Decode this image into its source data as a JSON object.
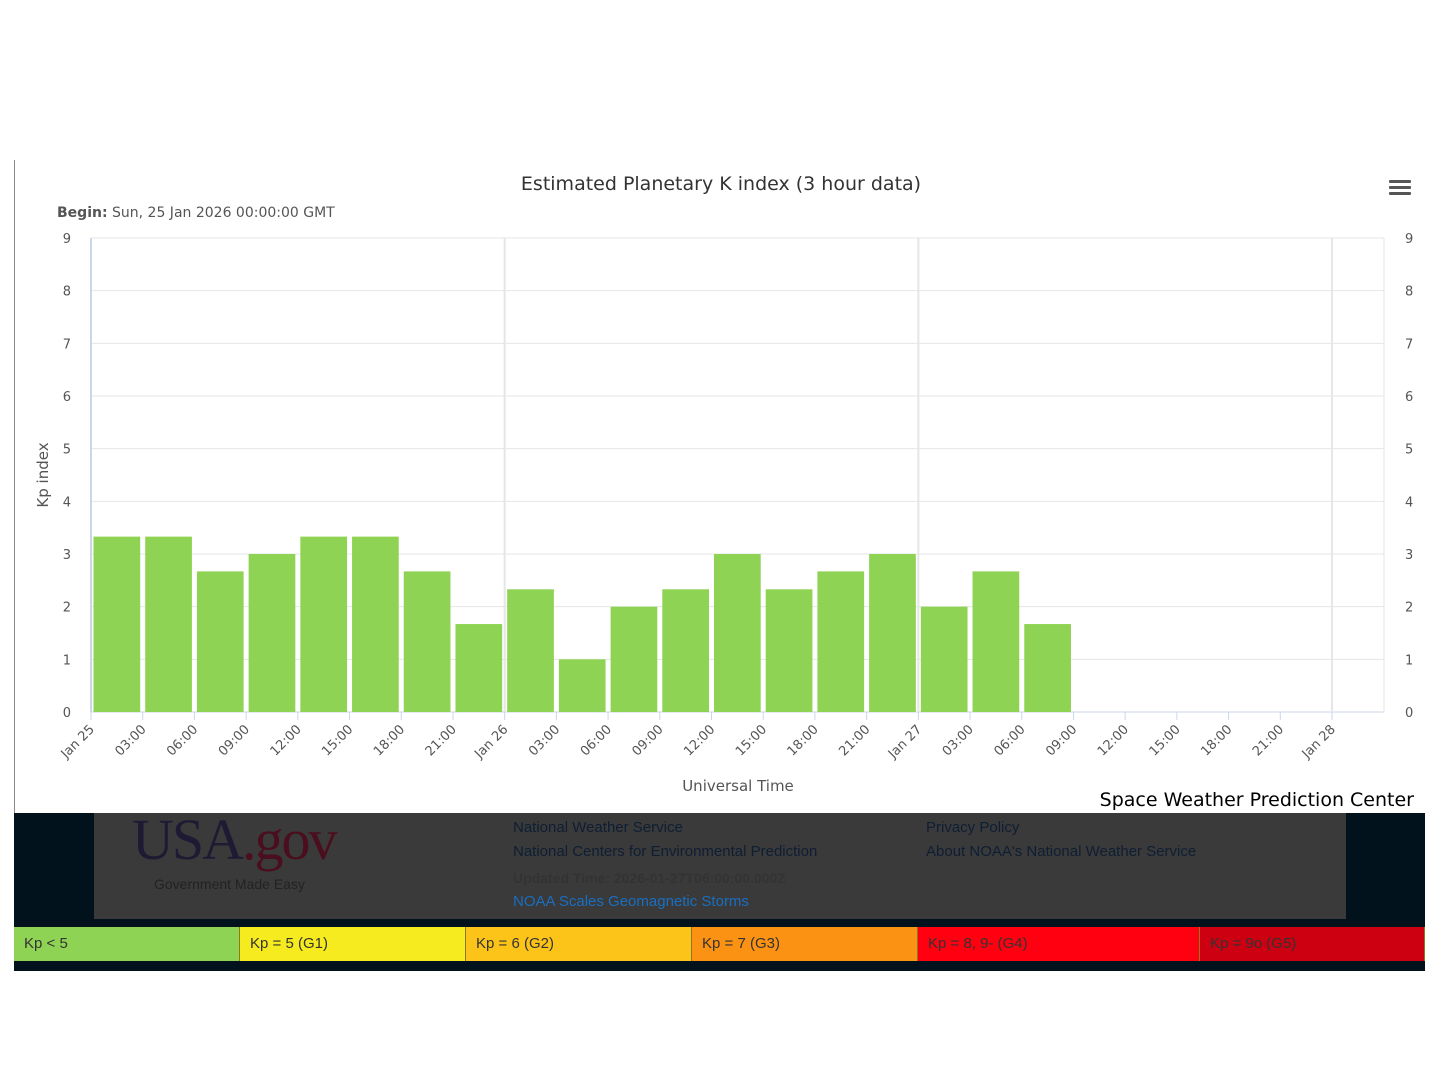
{
  "chart_data": {
    "type": "bar",
    "title": "Estimated Planetary K index (3 hour data)",
    "subtitle_label": "Begin:",
    "subtitle_value": " Sun, 25 Jan 2026 00:00:00 GMT",
    "xlabel": "Universal Time",
    "ylabel": "Kp index",
    "ylim": [
      0,
      9
    ],
    "yticks": [
      "0",
      "1",
      "2",
      "3",
      "4",
      "5",
      "6",
      "7",
      "8",
      "9"
    ],
    "xticks": [
      "Jan 25",
      "03:00",
      "06:00",
      "09:00",
      "12:00",
      "15:00",
      "18:00",
      "21:00",
      "Jan 26",
      "03:00",
      "06:00",
      "09:00",
      "12:00",
      "15:00",
      "18:00",
      "21:00",
      "Jan 27",
      "03:00",
      "06:00",
      "09:00",
      "12:00",
      "15:00",
      "18:00",
      "21:00",
      "Jan 28"
    ],
    "x_interval_hours": 3,
    "values": [
      3.33,
      3.33,
      2.67,
      3,
      3.33,
      3.33,
      2.67,
      1.67,
      2.33,
      1,
      2,
      2.33,
      3,
      2.33,
      2.67,
      3,
      2,
      2.67,
      1.67
    ],
    "bar_color": "#8fd354",
    "grid": true
  },
  "credit": "Space Weather Prediction Center",
  "footer": {
    "usa_logo": "USA.gov",
    "usa_tagline": "Government Made Easy",
    "links": [
      "National Weather Service",
      "National Centers for Environmental Prediction",
      "Privacy Policy",
      "About NOAA's National Weather Service"
    ],
    "updated": "Updated Time: 2026-01-27T06:00:00.000Z",
    "scales_link": "NOAA Scales Geomagnetic Storms"
  },
  "legend": [
    {
      "label": "Kp < 5",
      "color": "#8fd354"
    },
    {
      "label": "Kp = 5 (G1)",
      "color": "#f6eb1f"
    },
    {
      "label": "Kp = 6 (G2)",
      "color": "#fcc419"
    },
    {
      "label": "Kp = 7 (G3)",
      "color": "#fc9214"
    },
    {
      "label": "Kp = 8, 9- (G4)",
      "color": "#fe0010"
    },
    {
      "label": "Kp = 9o (G5)",
      "color": "#cc0010"
    }
  ]
}
